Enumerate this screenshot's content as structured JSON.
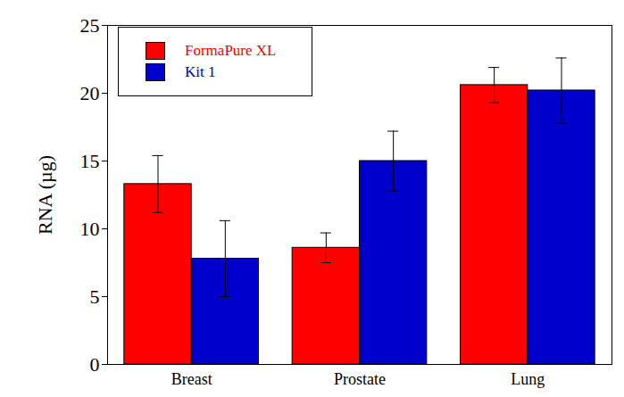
{
  "chart_data": {
    "type": "bar",
    "y_label": "RNA (µg)",
    "categories": [
      "Breast",
      "Prostate",
      "Lung"
    ],
    "series": [
      {
        "name": "FormaPure XL",
        "color": "#ff0000",
        "values": [
          13.3,
          8.6,
          20.6
        ],
        "errors": [
          2.1,
          1.1,
          1.3
        ]
      },
      {
        "name": "Kit 1",
        "color": "#0000cc",
        "values": [
          7.8,
          15.0,
          20.2
        ],
        "errors": [
          2.8,
          2.2,
          2.4
        ]
      }
    ],
    "ylim": [
      0,
      25
    ],
    "yticks": [
      0,
      5,
      10,
      15,
      20,
      25
    ],
    "grid": false,
    "legend": "upper left"
  }
}
